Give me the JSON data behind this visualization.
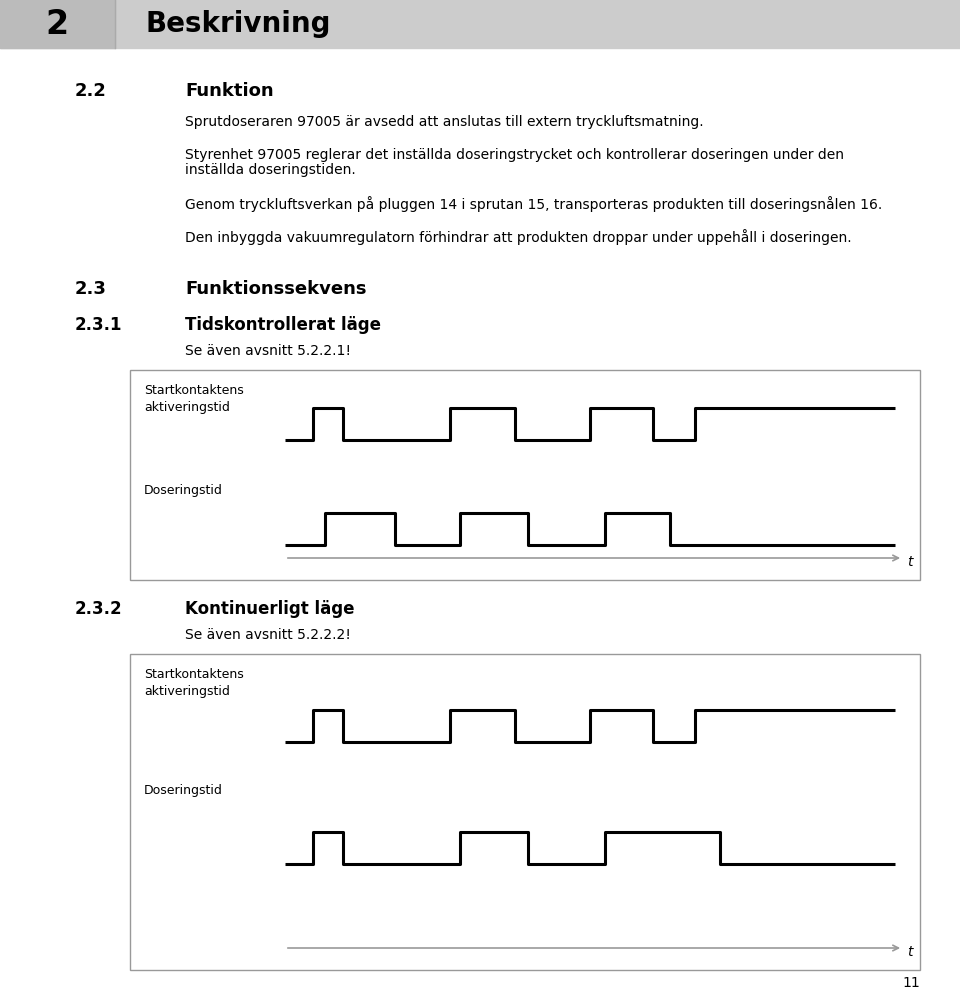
{
  "page_bg": "#ffffff",
  "header_bg": "#cccccc",
  "header_number_bg": "#bbbbbb",
  "header_number": "2",
  "header_title": "Beskrivning",
  "section_22_label": "2.2",
  "section_22_title": "Funktion",
  "section_22_text1": "Sprutdoseraren 97005 är avsedd att anslutas till extern tryckluftsmatning.",
  "section_22_text2a": "Styrenhet 97005 reglerar det inställda doseringstrycket och kontrollerar doseringen under den",
  "section_22_text2b": "inställda doseringstiden.",
  "section_22_text3": "Genom tryckluftsverkan på pluggen 14 i sprutan 15, transporteras produkten till doseringsnålen 16.",
  "section_22_text4": "Den inbyggda vakuumregulatorn förhindrar att produkten droppar under uppehåll i doseringen.",
  "section_23_label": "2.3",
  "section_23_title": "Funktionssekvens",
  "section_231_label": "2.3.1",
  "section_231_title": "Tidskontrollerat läge",
  "section_231_sub": "Se även avsnitt 5.2.2.1!",
  "section_232_label": "2.3.2",
  "section_232_title": "Kontinuerligt läge",
  "section_232_sub": "Se även avsnitt 5.2.2.2!",
  "page_number": "11",
  "diagram1_label1": "Startkontaktens\naktiveringstid",
  "diagram1_label2": "Doseringstid",
  "diagram2_label1": "Startkontaktens\naktiveringstid",
  "diagram2_label2": "Doseringstid",
  "lm": 75,
  "text_indent": 185
}
